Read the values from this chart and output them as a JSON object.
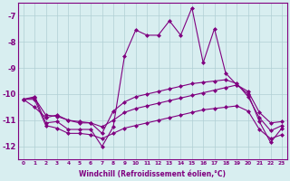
{
  "xlabel": "Windchill (Refroidissement éolien,°C)",
  "background_color": "#d8eef0",
  "grid_color": "#b0cfd4",
  "line_color": "#800080",
  "x_values": [
    0,
    1,
    2,
    3,
    4,
    5,
    6,
    7,
    8,
    9,
    10,
    11,
    12,
    13,
    14,
    15,
    16,
    17,
    18,
    19,
    20,
    21,
    22,
    23
  ],
  "line_volatile": [
    -10.2,
    -10.1,
    -11.1,
    -11.05,
    -11.35,
    -11.35,
    -11.35,
    -12.0,
    -11.25,
    -8.55,
    -7.55,
    -7.75,
    -7.75,
    -7.2,
    -7.75,
    -6.7,
    -8.8,
    -7.5,
    -9.2,
    -9.65,
    -10.0,
    -11.05,
    -11.85,
    -11.3
  ],
  "line_mid_upper": [
    -10.2,
    -10.5,
    -10.9,
    -10.8,
    -11.0,
    -11.1,
    -11.1,
    -11.5,
    -10.65,
    -10.3,
    -10.1,
    -10.0,
    -9.9,
    -9.8,
    -9.7,
    -9.6,
    -9.55,
    -9.5,
    -9.45,
    -9.6,
    -10.1,
    -10.9,
    -11.4,
    -11.2
  ],
  "line_flat_upper": [
    -10.2,
    -10.15,
    -10.8,
    -10.85,
    -11.0,
    -11.05,
    -11.1,
    -11.25,
    -11.0,
    -10.7,
    -10.55,
    -10.45,
    -10.35,
    -10.25,
    -10.15,
    -10.05,
    -9.95,
    -9.85,
    -9.75,
    -9.65,
    -9.9,
    -10.7,
    -11.1,
    -11.05
  ],
  "line_flat_lower": [
    -10.2,
    -10.2,
    -11.2,
    -11.3,
    -11.5,
    -11.5,
    -11.55,
    -11.7,
    -11.5,
    -11.3,
    -11.2,
    -11.1,
    -11.0,
    -10.9,
    -10.8,
    -10.7,
    -10.6,
    -10.55,
    -10.5,
    -10.45,
    -10.65,
    -11.35,
    -11.7,
    -11.55
  ],
  "xlim": [
    -0.5,
    23.5
  ],
  "ylim": [
    -12.5,
    -6.5
  ],
  "yticks": [
    -12,
    -11,
    -10,
    -9,
    -8,
    -7
  ],
  "xticks": [
    0,
    1,
    2,
    3,
    4,
    5,
    6,
    7,
    8,
    9,
    10,
    11,
    12,
    13,
    14,
    15,
    16,
    17,
    18,
    19,
    20,
    21,
    22,
    23
  ]
}
